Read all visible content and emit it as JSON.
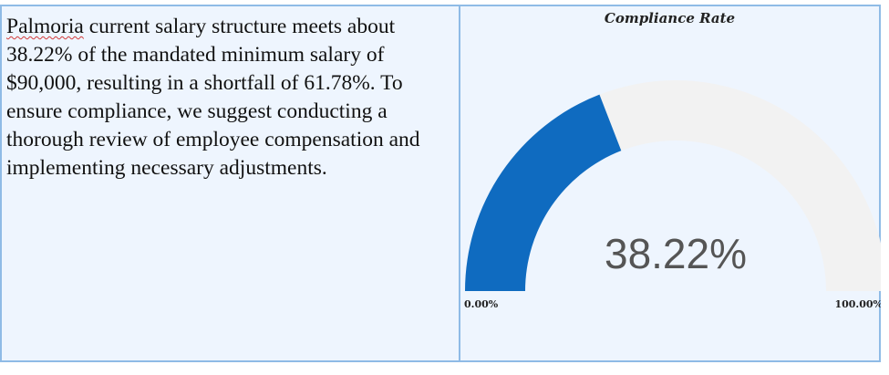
{
  "text": {
    "word_flagged": "Palmoria",
    "paragraph_rest": " current salary structure meets about 38.22% of the mandated minimum salary of $90,000, resulting in a shortfall of 61.78%. To ensure compliance, we suggest conducting a thorough review of employee compensation and implementing necessary adjustments."
  },
  "chart_data": {
    "type": "gauge",
    "title": "Compliance Rate",
    "value": 38.22,
    "value_label": "38.22%",
    "min": 0,
    "max": 100,
    "min_label": "0.00%",
    "max_label": "100.00%",
    "colors": {
      "fill": "#0f6bc0",
      "track": "#f2f2f2"
    }
  }
}
